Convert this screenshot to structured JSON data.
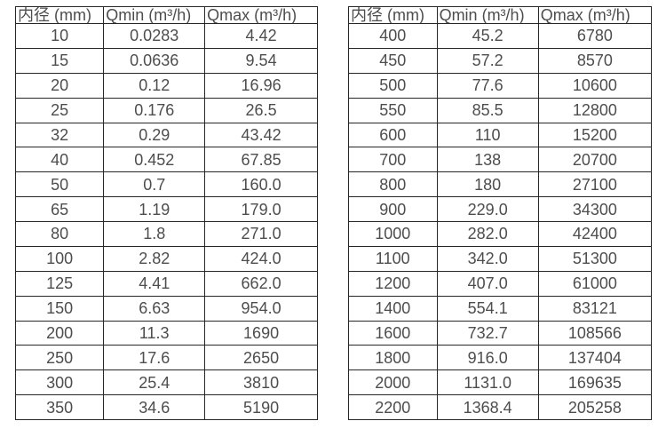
{
  "page": {
    "background_color": "#ffffff",
    "border_color": "#262626",
    "text_color": "#4d4d4d"
  },
  "tables": [
    {
      "name": "diameter-flow-table-small",
      "headers": [
        "内径 (mm)",
        "Qmin (m³/h)",
        "Qmax (m³/h)"
      ],
      "rows": [
        [
          "10",
          "0.0283",
          "4.42"
        ],
        [
          "15",
          "0.0636",
          "9.54"
        ],
        [
          "20",
          "0.12",
          "16.96"
        ],
        [
          "25",
          "0.176",
          "26.5"
        ],
        [
          "32",
          "0.29",
          "43.42"
        ],
        [
          "40",
          "0.452",
          "67.85"
        ],
        [
          "50",
          "0.7",
          "160.0"
        ],
        [
          "65",
          "1.19",
          "179.0"
        ],
        [
          "80",
          "1.8",
          "271.0"
        ],
        [
          "100",
          "2.82",
          "424.0"
        ],
        [
          "125",
          "4.41",
          "662.0"
        ],
        [
          "150",
          "6.63",
          "954.0"
        ],
        [
          "200",
          "11.3",
          "1690"
        ],
        [
          "250",
          "17.6",
          "2650"
        ],
        [
          "300",
          "25.4",
          "3810"
        ],
        [
          "350",
          "34.6",
          "5190"
        ]
      ]
    },
    {
      "name": "diameter-flow-table-large",
      "headers": [
        "内径 (mm)",
        "Qmin (m³/h)",
        "Qmax (m³/h)"
      ],
      "rows": [
        [
          "400",
          "45.2",
          "6780"
        ],
        [
          "450",
          "57.2",
          "8570"
        ],
        [
          "500",
          "77.6",
          "10600"
        ],
        [
          "550",
          "85.5",
          "12800"
        ],
        [
          "600",
          "110",
          "15200"
        ],
        [
          "700",
          "138",
          "20700"
        ],
        [
          "800",
          "180",
          "27100"
        ],
        [
          "900",
          "229.0",
          "34300"
        ],
        [
          "1000",
          "282.0",
          "42400"
        ],
        [
          "1100",
          "342.0",
          "51300"
        ],
        [
          "1200",
          "407.0",
          "61000"
        ],
        [
          "1400",
          "554.1",
          "83121"
        ],
        [
          "1600",
          "732.7",
          "108566"
        ],
        [
          "1800",
          "916.0",
          "137404"
        ],
        [
          "2000",
          "1131.0",
          "169635"
        ],
        [
          "2200",
          "1368.4",
          "205258"
        ]
      ]
    }
  ]
}
